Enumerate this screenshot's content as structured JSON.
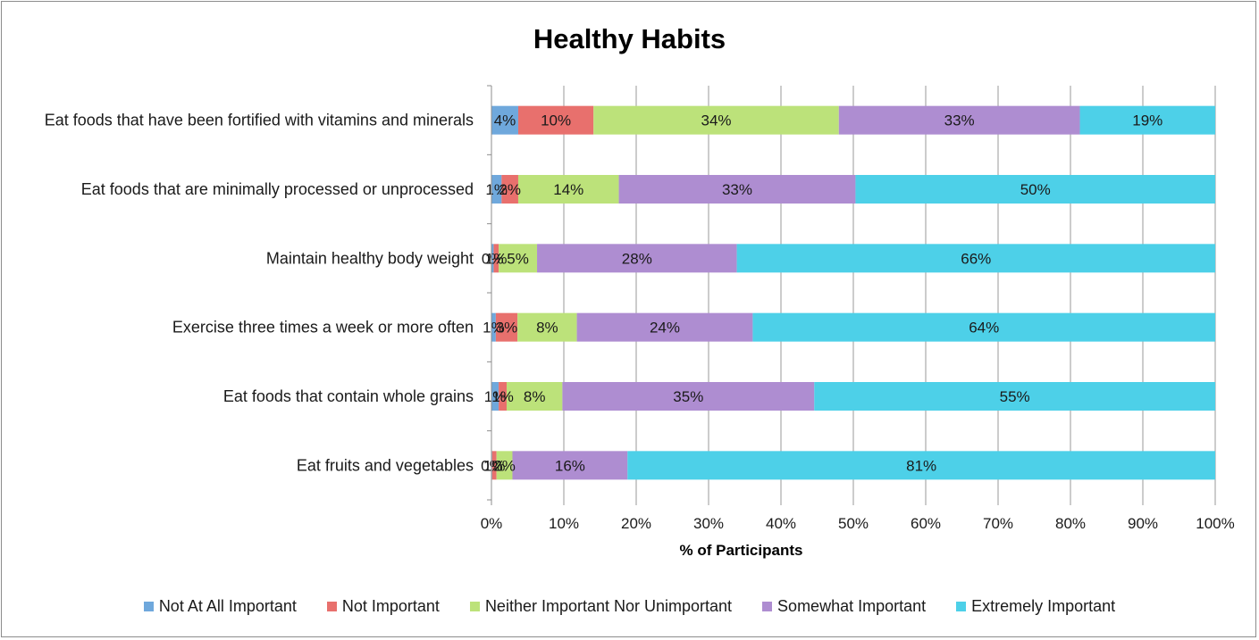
{
  "chart_data": {
    "type": "bar",
    "orientation": "horizontal",
    "stacked": "percent",
    "title": "Healthy Habits",
    "xlabel": "% of Participants",
    "ylabel": "",
    "xlim": [
      0,
      100
    ],
    "x_ticks": [
      "0%",
      "10%",
      "20%",
      "30%",
      "40%",
      "50%",
      "60%",
      "70%",
      "80%",
      "90%",
      "100%"
    ],
    "grid": true,
    "legend_position": "bottom",
    "categories": [
      "Eat foods that have been fortified with vitamins and minerals",
      "Eat foods that are minimally processed or unprocessed",
      "Maintain healthy body weight",
      "Exercise three times a week or more often",
      "Eat foods that contain whole grains",
      "Eat fruits and vegetables"
    ],
    "series": [
      {
        "name": "Not At All Important",
        "color": "#6fa8dc",
        "values": [
          4,
          1,
          0,
          1,
          1,
          0
        ],
        "labels": [
          "4%",
          "1%",
          "0%",
          "1%",
          "1%",
          "0%"
        ],
        "widths": [
          3.7,
          1.4,
          0.3,
          0.6,
          1.0,
          0.1
        ]
      },
      {
        "name": "Not Important",
        "color": "#e8706d",
        "values": [
          10,
          2,
          1,
          3,
          1,
          1
        ],
        "labels": [
          "10%",
          "2%",
          "1%",
          "3%",
          "1%",
          "1%"
        ],
        "widths": [
          10.4,
          2.3,
          0.7,
          3.0,
          1.1,
          0.6
        ]
      },
      {
        "name": "Neither Important Nor Unimportant",
        "color": "#bce27a",
        "values": [
          34,
          14,
          5,
          8,
          8,
          2
        ],
        "labels": [
          "34%",
          "14%",
          "5%",
          "8%",
          "8%",
          "2%"
        ],
        "widths": [
          33.9,
          13.9,
          5.3,
          8.2,
          7.7,
          2.2
        ]
      },
      {
        "name": "Somewhat Important",
        "color": "#ae8dd1",
        "values": [
          33,
          33,
          28,
          24,
          35,
          16
        ],
        "labels": [
          "33%",
          "33%",
          "28%",
          "24%",
          "35%",
          "16%"
        ],
        "widths": [
          33.3,
          32.7,
          27.6,
          24.3,
          34.8,
          15.9
        ]
      },
      {
        "name": "Extremely Important",
        "color": "#4dd0e8",
        "values": [
          19,
          50,
          66,
          64,
          55,
          81
        ],
        "labels": [
          "19%",
          "50%",
          "66%",
          "64%",
          "55%",
          "81%"
        ],
        "widths": [
          18.7,
          49.7,
          66.1,
          63.9,
          55.4,
          81.2
        ]
      }
    ]
  }
}
